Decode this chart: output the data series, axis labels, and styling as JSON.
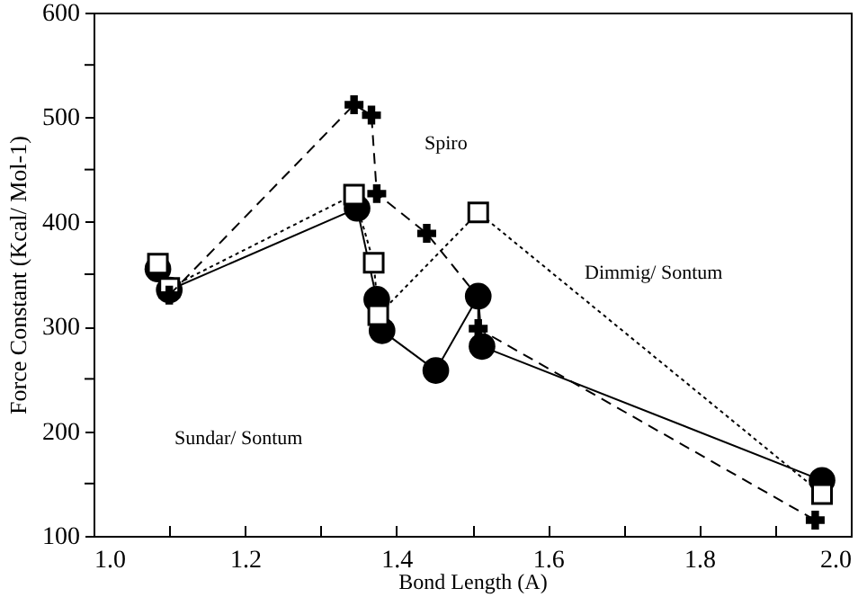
{
  "chart_data": {
    "type": "line",
    "xlabel": "Bond Length (A)",
    "ylabel": "Force Constant (Kcal/ Mol-1)",
    "xlim": [
      1.0,
      2.0
    ],
    "ylim": [
      100,
      600
    ],
    "xticks": [
      {
        "value": 1,
        "label": "1.0"
      },
      {
        "value": 1.1,
        "label": null
      },
      1.2,
      {
        "value": 1.3,
        "label": null
      },
      1.4,
      {
        "value": 1.5,
        "label": null
      },
      1.6,
      {
        "value": 1.7,
        "label": null
      },
      1.8,
      {
        "value": 1.9,
        "label": null
      },
      {
        "value": 2,
        "label": "2.0"
      }
    ],
    "yticks": [
      100,
      {
        "value": 150,
        "label": null
      },
      200,
      {
        "value": 250,
        "label": null
      },
      300,
      {
        "value": 350,
        "label": null
      },
      400,
      {
        "value": 450,
        "label": null
      },
      500,
      {
        "value": 550,
        "label": null
      },
      600
    ],
    "grid": false,
    "series": [
      {
        "color": "#000000",
        "marker": "circle",
        "line_style": "solid",
        "x": [
          1.085,
          1.1,
          1.348,
          1.374,
          1.381,
          1.452,
          1.508,
          1.513,
          1.962
        ],
        "values": [
          355,
          335,
          413,
          326,
          296,
          258,
          329,
          281,
          153
        ]
      },
      {
        "color": "#000000",
        "marker": "square",
        "line_style": "dotted",
        "x": [
          1.085,
          1.1,
          1.344,
          1.37,
          1.376,
          1.508,
          1.962
        ],
        "values": [
          360,
          337,
          426,
          361,
          311,
          409,
          140
        ]
      },
      {
        "color": "#000000",
        "marker": "cross",
        "line_style": "dashed",
        "x": [
          1.1,
          1.344,
          1.367,
          1.374,
          1.44,
          1.508,
          1.508,
          1.953
        ],
        "values": [
          330,
          512,
          502,
          427,
          389,
          328,
          298,
          115
        ]
      }
    ],
    "annotations": [
      "Spiro",
      "Dimmig/ Sontum",
      "Sundar/ Sontum"
    ]
  }
}
